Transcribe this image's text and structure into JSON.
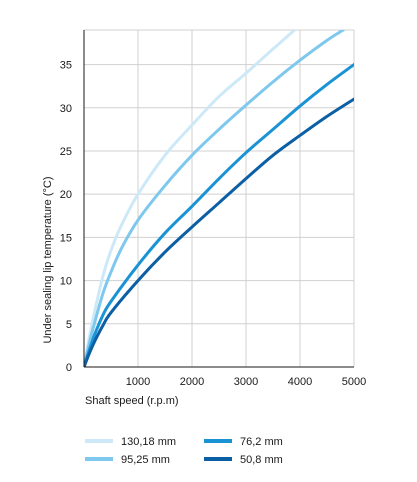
{
  "chart_data": {
    "type": "line",
    "title": "",
    "xlabel": "Shaft speed  (r.p.m)",
    "ylabel": "Under sealing lip temperature  (°C)",
    "xlim": [
      0,
      5000
    ],
    "ylim": [
      0,
      39
    ],
    "x_ticks": [
      "1000",
      "2000",
      "3000",
      "4000",
      "5000"
    ],
    "y_ticks": [
      "0",
      "5",
      "10",
      "15",
      "20",
      "25",
      "30",
      "35"
    ],
    "grid": true,
    "legend_position": "bottom",
    "series": [
      {
        "name": "130,18 mm",
        "color": "#cde9f8",
        "x": [
          0,
          100,
          200,
          350,
          500,
          700,
          1000,
          1500,
          2000,
          2500,
          3000,
          3500,
          3900
        ],
        "y": [
          0,
          3.5,
          6.5,
          10.5,
          13.5,
          16.5,
          20,
          24.5,
          28,
          31.3,
          34,
          36.8,
          39
        ]
      },
      {
        "name": "95,25 mm",
        "color": "#7fc8ed",
        "x": [
          0,
          100,
          200,
          350,
          500,
          700,
          1000,
          1500,
          2000,
          2500,
          3000,
          3500,
          4000,
          4500,
          4800
        ],
        "y": [
          0,
          2.8,
          5.2,
          8.5,
          11,
          13.8,
          17,
          21,
          24.5,
          27.5,
          30.3,
          33,
          35.5,
          37.8,
          39
        ]
      },
      {
        "name": "76,2 mm",
        "color": "#1a93d5",
        "x": [
          0,
          100,
          200,
          350,
          500,
          1000,
          1500,
          2000,
          2500,
          3000,
          3500,
          4000,
          4500,
          5000
        ],
        "y": [
          0,
          2,
          3.8,
          6,
          7.6,
          11.8,
          15.5,
          18.6,
          21.8,
          24.8,
          27.5,
          30.2,
          32.7,
          35
        ]
      },
      {
        "name": "50,8 mm",
        "color": "#0b5fa5",
        "x": [
          0,
          100,
          200,
          350,
          500,
          1000,
          1500,
          2000,
          2500,
          3000,
          3500,
          4000,
          4500,
          5000
        ],
        "y": [
          0,
          1.6,
          3,
          4.8,
          6.3,
          10,
          13.3,
          16.2,
          19,
          21.8,
          24.5,
          26.8,
          29,
          31
        ]
      }
    ]
  }
}
